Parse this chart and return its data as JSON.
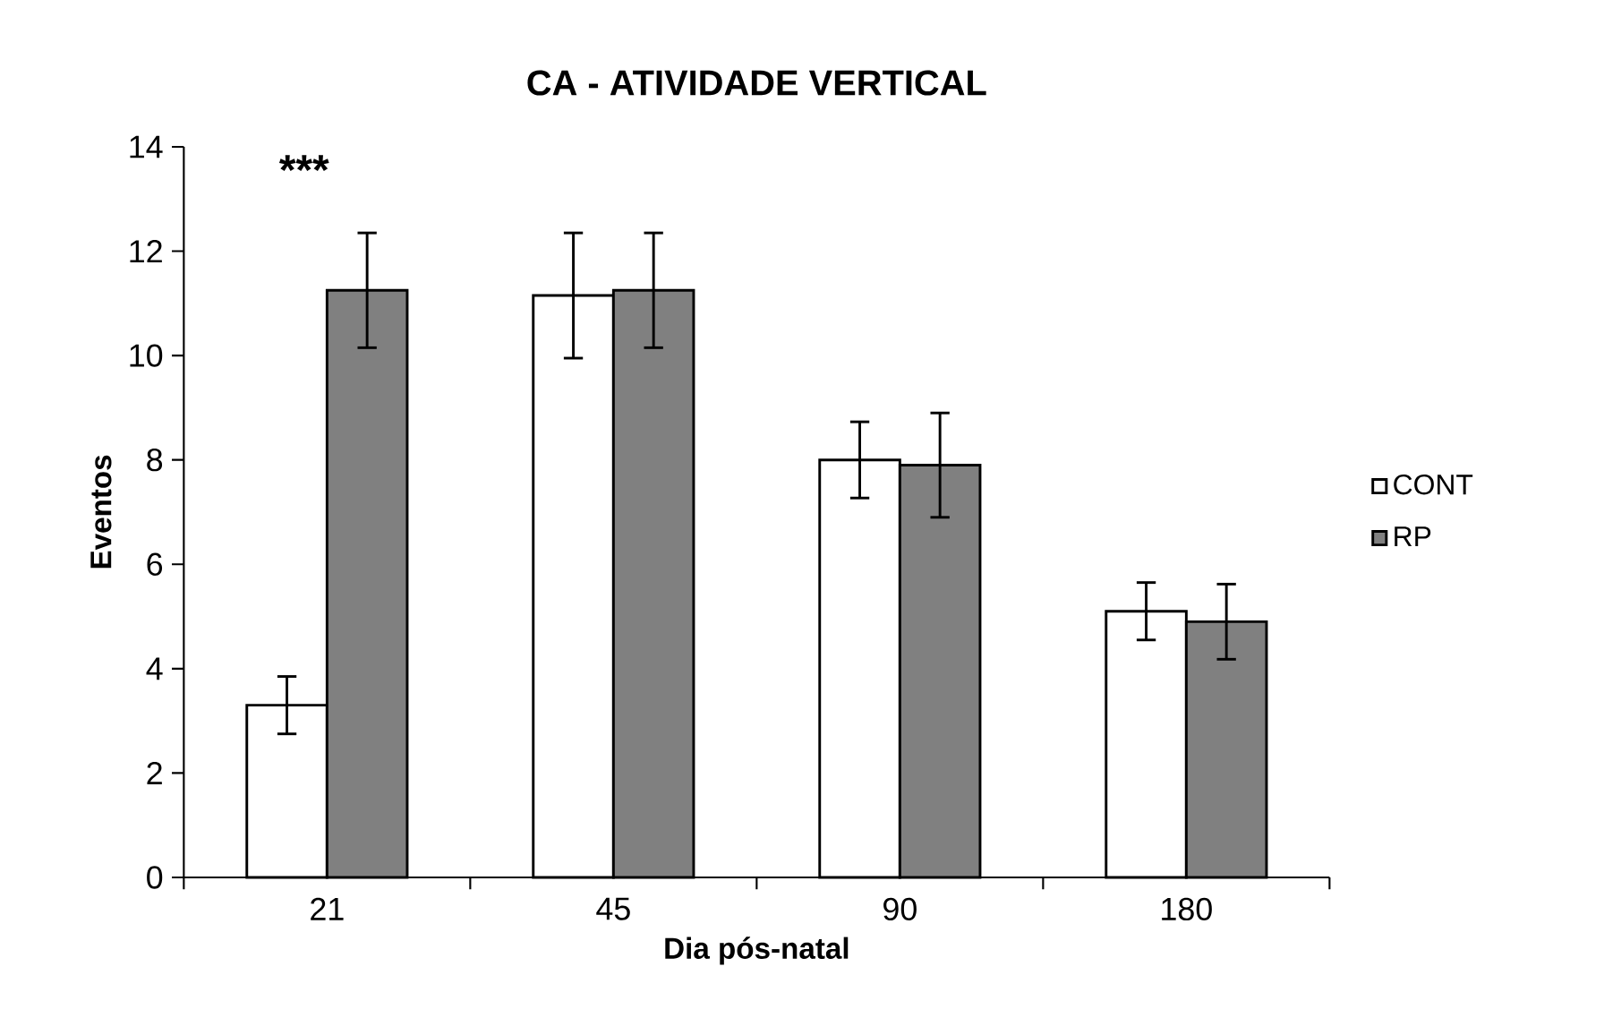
{
  "chart_data": {
    "type": "bar",
    "title": "CA - ATIVIDADE VERTICAL",
    "xlabel": "Dia pós-natal",
    "ylabel": "Eventos",
    "categories": [
      "21",
      "45",
      "90",
      "180"
    ],
    "series": [
      {
        "name": "CONT",
        "color": "#ffffff",
        "values": [
          3.3,
          11.15,
          8.0,
          5.1
        ],
        "errors": [
          0.55,
          1.2,
          0.73,
          0.55
        ]
      },
      {
        "name": "RP",
        "color": "#808080",
        "values": [
          11.25,
          11.25,
          7.9,
          4.9
        ],
        "errors": [
          1.1,
          1.1,
          1.0,
          0.72
        ]
      }
    ],
    "ylim": [
      0,
      14
    ],
    "yticks": [
      0,
      2,
      4,
      6,
      8,
      10,
      12,
      14
    ],
    "legend": "right",
    "annotations": [
      "***"
    ]
  }
}
